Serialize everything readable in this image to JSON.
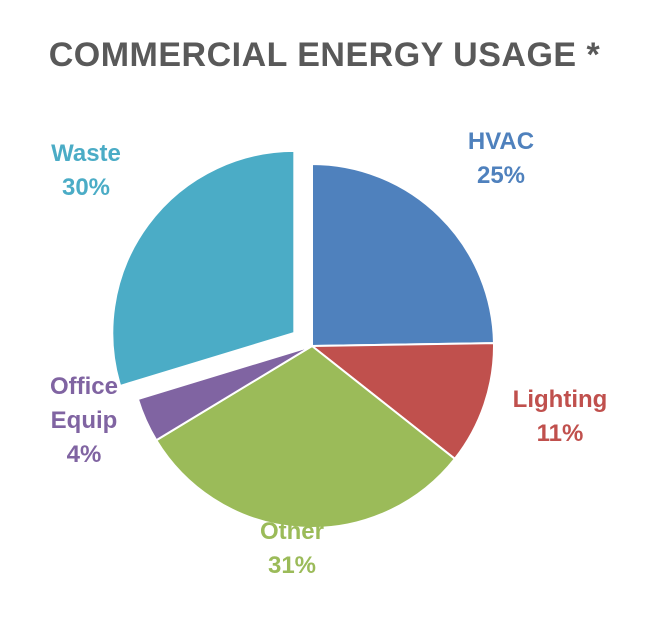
{
  "chart_data": {
    "type": "pie",
    "title": "COMMERCIAL ENERGY USAGE *",
    "exploded_slice": "Waste",
    "slices": [
      {
        "name": "HVAC",
        "value": 25,
        "pct_label": "25%",
        "color": "#4F81BD"
      },
      {
        "name": "Lighting",
        "value": 11,
        "pct_label": "11%",
        "color": "#C0504D"
      },
      {
        "name": "Other",
        "value": 31,
        "pct_label": "31%",
        "color": "#9BBB59"
      },
      {
        "name_lines": [
          "Office",
          "Equip"
        ],
        "value": 4,
        "pct_label": "4%",
        "color": "#8064A2"
      },
      {
        "name": "Waste",
        "value": 30,
        "pct_label": "30%",
        "color": "#4BACC6"
      }
    ]
  }
}
